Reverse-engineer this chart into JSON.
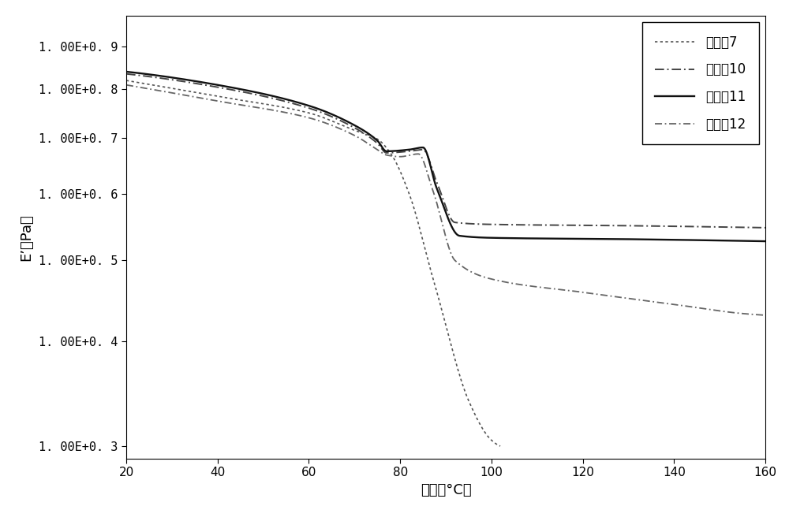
{
  "xlabel": "温度（°C）",
  "ylabel": "E’（Pa）",
  "xlim": [
    20,
    160
  ],
  "xticks": [
    20,
    40,
    60,
    80,
    100,
    120,
    140,
    160
  ],
  "ytick_vals": [
    300000000.0,
    400000000.0,
    500000000.0,
    600000000.0,
    700000000.0,
    800000000.0,
    900000000.0
  ],
  "ytick_labels": [
    "1. 00E+0. 3",
    "1. 00E+0. 4",
    "1. 00E+0. 5",
    "1. 00E+0. 6",
    "1. 00E+0. 7",
    "1. 00E+0. 8",
    "1. 00E+0. 9"
  ],
  "background_color": "#ffffff",
  "legend_labels": [
    "比较佹7",
    "实施佹10",
    "实施佹11",
    "实施佹12"
  ]
}
